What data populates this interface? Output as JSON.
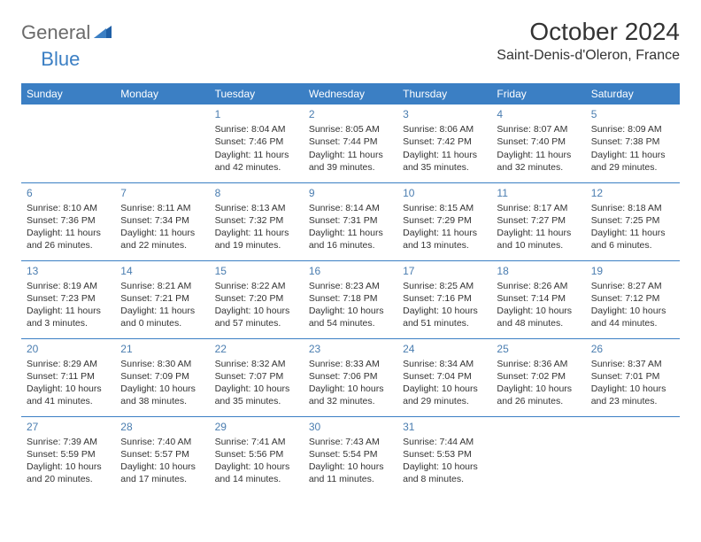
{
  "logo": {
    "general": "General",
    "blue": "Blue"
  },
  "title": "October 2024",
  "location": "Saint-Denis-d'Oleron, France",
  "colors": {
    "header_bg": "#3b7fc4",
    "header_text": "#ffffff",
    "day_num": "#4a7db0",
    "border": "#3b7fc4",
    "text": "#333333",
    "logo_gray": "#6b6b6b",
    "logo_blue": "#3b7fc4"
  },
  "weekdays": [
    "Sunday",
    "Monday",
    "Tuesday",
    "Wednesday",
    "Thursday",
    "Friday",
    "Saturday"
  ],
  "weeks": [
    [
      null,
      null,
      {
        "n": "1",
        "sr": "Sunrise: 8:04 AM",
        "ss": "Sunset: 7:46 PM",
        "dl": "Daylight: 11 hours and 42 minutes."
      },
      {
        "n": "2",
        "sr": "Sunrise: 8:05 AM",
        "ss": "Sunset: 7:44 PM",
        "dl": "Daylight: 11 hours and 39 minutes."
      },
      {
        "n": "3",
        "sr": "Sunrise: 8:06 AM",
        "ss": "Sunset: 7:42 PM",
        "dl": "Daylight: 11 hours and 35 minutes."
      },
      {
        "n": "4",
        "sr": "Sunrise: 8:07 AM",
        "ss": "Sunset: 7:40 PM",
        "dl": "Daylight: 11 hours and 32 minutes."
      },
      {
        "n": "5",
        "sr": "Sunrise: 8:09 AM",
        "ss": "Sunset: 7:38 PM",
        "dl": "Daylight: 11 hours and 29 minutes."
      }
    ],
    [
      {
        "n": "6",
        "sr": "Sunrise: 8:10 AM",
        "ss": "Sunset: 7:36 PM",
        "dl": "Daylight: 11 hours and 26 minutes."
      },
      {
        "n": "7",
        "sr": "Sunrise: 8:11 AM",
        "ss": "Sunset: 7:34 PM",
        "dl": "Daylight: 11 hours and 22 minutes."
      },
      {
        "n": "8",
        "sr": "Sunrise: 8:13 AM",
        "ss": "Sunset: 7:32 PM",
        "dl": "Daylight: 11 hours and 19 minutes."
      },
      {
        "n": "9",
        "sr": "Sunrise: 8:14 AM",
        "ss": "Sunset: 7:31 PM",
        "dl": "Daylight: 11 hours and 16 minutes."
      },
      {
        "n": "10",
        "sr": "Sunrise: 8:15 AM",
        "ss": "Sunset: 7:29 PM",
        "dl": "Daylight: 11 hours and 13 minutes."
      },
      {
        "n": "11",
        "sr": "Sunrise: 8:17 AM",
        "ss": "Sunset: 7:27 PM",
        "dl": "Daylight: 11 hours and 10 minutes."
      },
      {
        "n": "12",
        "sr": "Sunrise: 8:18 AM",
        "ss": "Sunset: 7:25 PM",
        "dl": "Daylight: 11 hours and 6 minutes."
      }
    ],
    [
      {
        "n": "13",
        "sr": "Sunrise: 8:19 AM",
        "ss": "Sunset: 7:23 PM",
        "dl": "Daylight: 11 hours and 3 minutes."
      },
      {
        "n": "14",
        "sr": "Sunrise: 8:21 AM",
        "ss": "Sunset: 7:21 PM",
        "dl": "Daylight: 11 hours and 0 minutes."
      },
      {
        "n": "15",
        "sr": "Sunrise: 8:22 AM",
        "ss": "Sunset: 7:20 PM",
        "dl": "Daylight: 10 hours and 57 minutes."
      },
      {
        "n": "16",
        "sr": "Sunrise: 8:23 AM",
        "ss": "Sunset: 7:18 PM",
        "dl": "Daylight: 10 hours and 54 minutes."
      },
      {
        "n": "17",
        "sr": "Sunrise: 8:25 AM",
        "ss": "Sunset: 7:16 PM",
        "dl": "Daylight: 10 hours and 51 minutes."
      },
      {
        "n": "18",
        "sr": "Sunrise: 8:26 AM",
        "ss": "Sunset: 7:14 PM",
        "dl": "Daylight: 10 hours and 48 minutes."
      },
      {
        "n": "19",
        "sr": "Sunrise: 8:27 AM",
        "ss": "Sunset: 7:12 PM",
        "dl": "Daylight: 10 hours and 44 minutes."
      }
    ],
    [
      {
        "n": "20",
        "sr": "Sunrise: 8:29 AM",
        "ss": "Sunset: 7:11 PM",
        "dl": "Daylight: 10 hours and 41 minutes."
      },
      {
        "n": "21",
        "sr": "Sunrise: 8:30 AM",
        "ss": "Sunset: 7:09 PM",
        "dl": "Daylight: 10 hours and 38 minutes."
      },
      {
        "n": "22",
        "sr": "Sunrise: 8:32 AM",
        "ss": "Sunset: 7:07 PM",
        "dl": "Daylight: 10 hours and 35 minutes."
      },
      {
        "n": "23",
        "sr": "Sunrise: 8:33 AM",
        "ss": "Sunset: 7:06 PM",
        "dl": "Daylight: 10 hours and 32 minutes."
      },
      {
        "n": "24",
        "sr": "Sunrise: 8:34 AM",
        "ss": "Sunset: 7:04 PM",
        "dl": "Daylight: 10 hours and 29 minutes."
      },
      {
        "n": "25",
        "sr": "Sunrise: 8:36 AM",
        "ss": "Sunset: 7:02 PM",
        "dl": "Daylight: 10 hours and 26 minutes."
      },
      {
        "n": "26",
        "sr": "Sunrise: 8:37 AM",
        "ss": "Sunset: 7:01 PM",
        "dl": "Daylight: 10 hours and 23 minutes."
      }
    ],
    [
      {
        "n": "27",
        "sr": "Sunrise: 7:39 AM",
        "ss": "Sunset: 5:59 PM",
        "dl": "Daylight: 10 hours and 20 minutes."
      },
      {
        "n": "28",
        "sr": "Sunrise: 7:40 AM",
        "ss": "Sunset: 5:57 PM",
        "dl": "Daylight: 10 hours and 17 minutes."
      },
      {
        "n": "29",
        "sr": "Sunrise: 7:41 AM",
        "ss": "Sunset: 5:56 PM",
        "dl": "Daylight: 10 hours and 14 minutes."
      },
      {
        "n": "30",
        "sr": "Sunrise: 7:43 AM",
        "ss": "Sunset: 5:54 PM",
        "dl": "Daylight: 10 hours and 11 minutes."
      },
      {
        "n": "31",
        "sr": "Sunrise: 7:44 AM",
        "ss": "Sunset: 5:53 PM",
        "dl": "Daylight: 10 hours and 8 minutes."
      },
      null,
      null
    ]
  ]
}
